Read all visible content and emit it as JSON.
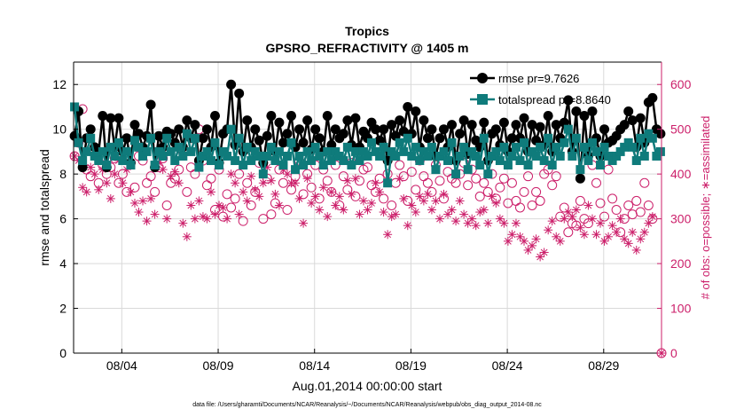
{
  "chart_data": {
    "type": "line",
    "title": "Tropics",
    "subtitle": "GPSRO_REFRACTIVITY @ 1405 m",
    "xlabel": "Aug.01,2014 00:00:00 start",
    "ylabel": "rmse and totalspread",
    "y2label": "# of obs: o=possible; ∗=assimilated",
    "footnote": "data file: /Users/gharamti/Documents/NCAR/Reanalysis/~/Documents/NCAR/Reanalysis/webpub/obs_diag_output_2014-08.nc",
    "x_tick_labels": [
      "08/04",
      "08/09",
      "08/14",
      "08/19",
      "08/24",
      "08/29"
    ],
    "x_tick_days": [
      4,
      9,
      14,
      19,
      24,
      29
    ],
    "xlim": [
      1.5,
      32.0
    ],
    "ylim": [
      0,
      13
    ],
    "y_ticks": [
      0,
      2,
      4,
      6,
      8,
      10,
      12
    ],
    "y2lim": [
      0,
      650
    ],
    "y2_ticks": [
      0,
      100,
      200,
      300,
      400,
      500,
      600
    ],
    "grid": true,
    "legend_position": "top-right",
    "colors": {
      "rmse": "#000000",
      "spread": "#0f7b7b",
      "obs": "#cc1f6a",
      "grid": "#d9d9d9"
    },
    "series": [
      {
        "name": "rmse pr=9.7626",
        "axis": "left",
        "marker": "circle",
        "values": [
          9.7,
          10.8,
          8.3,
          9.6,
          10.0,
          9.2,
          9.0,
          10.6,
          8.3,
          10.5,
          9.2,
          10.5,
          9.0,
          9.6,
          8.5,
          10.2,
          9.8,
          9.2,
          9.7,
          11.1,
          8.3,
          9.7,
          9.2,
          9.9,
          9.8,
          9.4,
          10.0,
          9.2,
          10.4,
          9.6,
          10.2,
          8.6,
          9.6,
          10.0,
          9.2,
          10.6,
          8.5,
          9.8,
          10.0,
          12.0,
          9.3,
          11.6,
          9.0,
          10.4,
          9.2,
          10.0,
          9.5,
          8.5,
          9.7,
          10.6,
          9.0,
          10.3,
          9.4,
          9.8,
          10.6,
          9.2,
          10.0,
          9.4,
          10.4,
          9.1,
          10.0,
          9.6,
          9.0,
          10.6,
          9.3,
          10.0,
          9.6,
          9.8,
          10.4,
          9.3,
          10.5,
          9.2,
          9.9,
          9.6,
          10.3,
          10.0,
          9.5,
          10.0,
          8.6,
          10.2,
          9.7,
          10.4,
          9.9,
          11.0,
          9.8,
          10.8,
          9.2,
          10.4,
          9.6,
          10.0,
          8.8,
          9.6,
          10.0,
          9.2,
          10.2,
          8.6,
          9.8,
          10.4,
          8.9,
          10.2,
          9.5,
          9.2,
          10.3,
          8.6,
          9.8,
          10.0,
          9.3,
          10.3,
          9.0,
          9.6,
          10.2,
          9.6,
          10.5,
          9.0,
          10.2,
          9.5,
          10.1,
          9.3,
          10.6,
          9.0,
          10.2,
          9.6,
          10.3,
          11.3,
          9.0,
          10.8,
          7.8,
          10.6,
          8.8,
          10.8,
          9.6,
          8.8,
          10.0,
          9.4,
          9.5,
          9.7,
          10.0,
          10.2,
          10.8,
          10.4,
          9.2,
          10.5,
          9.4,
          11.2,
          11.4,
          10.0,
          9.8
        ]
      },
      {
        "name": "totalspread pr=8.8640",
        "axis": "left",
        "marker": "square",
        "values": [
          11.0,
          9.4,
          8.6,
          9.0,
          9.6,
          8.8,
          8.6,
          9.0,
          8.4,
          9.2,
          8.8,
          9.4,
          8.6,
          9.0,
          8.4,
          9.5,
          9.2,
          8.8,
          9.0,
          9.6,
          8.4,
          9.0,
          8.8,
          9.6,
          9.0,
          8.6,
          9.2,
          8.8,
          9.8,
          9.0,
          9.6,
          8.3,
          8.8,
          9.0,
          8.6,
          9.4,
          8.4,
          9.0,
          8.8,
          10.0,
          8.6,
          9.6,
          8.4,
          9.2,
          8.6,
          9.0,
          8.8,
          8.0,
          8.8,
          9.2,
          8.6,
          9.0,
          8.4,
          8.8,
          9.4,
          8.2,
          8.8,
          8.4,
          9.0,
          8.6,
          9.2,
          8.8,
          8.4,
          9.0,
          8.6,
          9.0,
          8.8,
          8.6,
          9.2,
          8.4,
          9.0,
          8.6,
          9.0,
          8.8,
          9.4,
          9.0,
          8.8,
          9.2,
          7.6,
          9.0,
          8.8,
          9.4,
          9.0,
          9.6,
          8.8,
          9.2,
          8.6,
          9.0,
          8.8,
          9.2,
          8.2,
          8.8,
          9.0,
          8.6,
          9.4,
          8.0,
          8.8,
          9.2,
          8.2,
          9.0,
          8.8,
          8.4,
          9.6,
          8.0,
          8.8,
          9.0,
          8.6,
          9.2,
          8.4,
          8.8,
          9.2,
          8.6,
          9.4,
          8.4,
          9.0,
          8.8,
          9.2,
          8.6,
          9.6,
          8.4,
          9.2,
          8.8,
          9.4,
          10.0,
          8.8,
          9.6,
          8.2,
          9.2,
          8.6,
          9.4,
          9.0,
          8.4,
          9.2,
          8.8,
          8.6,
          8.8,
          9.0,
          9.2,
          9.4,
          9.2,
          8.6,
          9.6,
          8.8,
          9.8,
          9.6,
          8.8,
          9.0
        ]
      },
      {
        "name": "possible",
        "axis": "right",
        "marker": "open-circle",
        "values": [
          440,
          470,
          545,
          410,
          395,
          450,
          380,
          420,
          400,
          415,
          435,
          380,
          400,
          360,
          425,
          370,
          440,
          430,
          380,
          395,
          360,
          415,
          435,
          330,
          380,
          390,
          410,
          450,
          360,
          415,
          400,
          500,
          430,
          375,
          390,
          320,
          410,
          305,
          355,
          325,
          345,
          400,
          295,
          380,
          330,
          360,
          425,
          300,
          390,
          310,
          335,
          410,
          380,
          320,
          365,
          395,
          430,
          355,
          400,
          370,
          420,
          345,
          410,
          385,
          360,
          420,
          330,
          395,
          365,
          425,
          350,
          385,
          410,
          415,
          375,
          360,
          390,
          345,
          400,
          330,
          380,
          420,
          395,
          340,
          405,
          365,
          430,
          395,
          380,
          360,
          420,
          385,
          345,
          405,
          390,
          380,
          400,
          425,
          375,
          410,
          390,
          350,
          380,
          360,
          400,
          345,
          370,
          390,
          335,
          380,
          340,
          325,
          360,
          395,
          330,
          360,
          340,
          400,
          410,
          375,
          395,
          305,
          325,
          270,
          290,
          285,
          340,
          300,
          290,
          420,
          380,
          335,
          305,
          410,
          345,
          320,
          270,
          300,
          330,
          310,
          340,
          315,
          380,
          330,
          300
        ]
      },
      {
        "name": "assimilated",
        "axis": "right",
        "marker": "asterisk",
        "values": [
          440,
          430,
          370,
          360,
          415,
          400,
          365,
          410,
          380,
          345,
          400,
          430,
          380,
          410,
          360,
          335,
          315,
          340,
          295,
          345,
          310,
          425,
          410,
          300,
          395,
          405,
          380,
          290,
          260,
          330,
          300,
          340,
          305,
          300,
          360,
          310,
          330,
          325,
          300,
          400,
          380,
          310,
          360,
          340,
          395,
          365,
          350,
          380,
          415,
          385,
          355,
          330,
          410,
          400,
          380,
          380,
          345,
          290,
          390,
          335,
          350,
          320,
          370,
          305,
          360,
          330,
          350,
          320,
          385,
          355,
          390,
          310,
          340,
          320,
          335,
          380,
          360,
          315,
          265,
          305,
          310,
          390,
          345,
          285,
          330,
          315,
          350,
          340,
          355,
          320,
          340,
          300,
          355,
          310,
          320,
          295,
          340,
          310,
          290,
          300,
          285,
          315,
          320,
          290,
          350,
          335,
          300,
          290,
          250,
          265,
          290,
          260,
          250,
          230,
          240,
          255,
          215,
          225,
          275,
          295,
          260,
          250,
          300,
          315,
          305,
          320,
          280,
          265,
          330,
          300,
          265,
          290,
          250,
          260,
          285,
          270,
          300,
          255,
          245,
          270,
          230,
          255,
          270,
          290,
          305
        ]
      }
    ]
  }
}
